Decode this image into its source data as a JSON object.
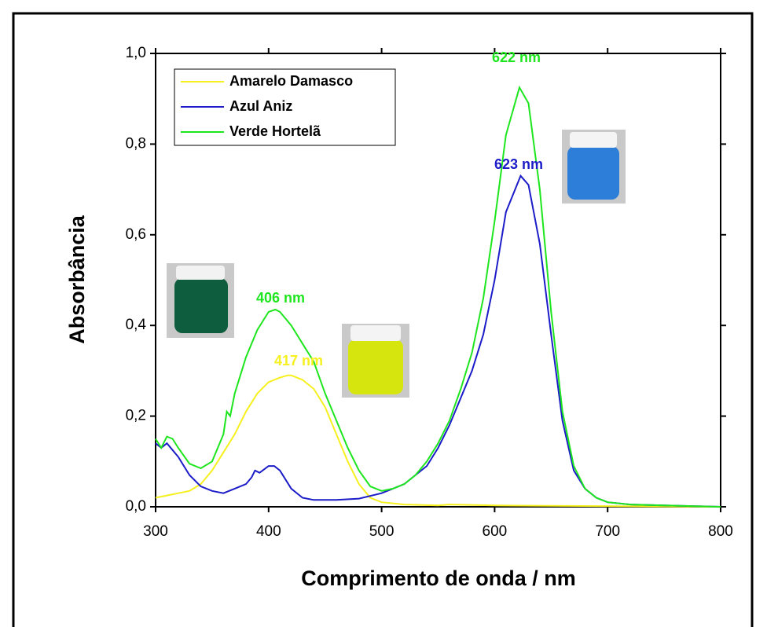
{
  "chart_data": {
    "type": "line",
    "xlabel": "Comprimento de onda / nm",
    "ylabel": "Absorbância",
    "xlim": [
      300,
      800
    ],
    "xticks": [
      300,
      400,
      500,
      600,
      700,
      800
    ],
    "ylim": [
      0,
      1.0
    ],
    "yticks": [
      {
        "value": 0,
        "label": "0,0"
      },
      {
        "value": 0.2,
        "label": "0,2"
      },
      {
        "value": 0.4,
        "label": "0,4"
      },
      {
        "value": 0.6,
        "label": "0,6"
      },
      {
        "value": 0.8,
        "label": "0,8"
      },
      {
        "value": 1.0,
        "label": "1,0"
      }
    ],
    "legend": "upper left",
    "series": [
      {
        "name": "Amarelo Damasco",
        "color": "#f5f01e",
        "x": [
          300,
          310,
          320,
          330,
          340,
          350,
          360,
          370,
          380,
          390,
          400,
          410,
          417,
          420,
          430,
          440,
          450,
          460,
          470,
          480,
          490,
          500,
          520,
          550,
          560,
          600,
          800
        ],
        "values": [
          0.02,
          0.025,
          0.03,
          0.035,
          0.05,
          0.08,
          0.12,
          0.16,
          0.21,
          0.25,
          0.275,
          0.285,
          0.29,
          0.29,
          0.28,
          0.26,
          0.22,
          0.16,
          0.1,
          0.05,
          0.02,
          0.01,
          0.005,
          0.003,
          0.005,
          0.003,
          0.0
        ]
      },
      {
        "name": "Azul Aniz",
        "color": "#1c1cc8",
        "x": [
          300,
          305,
          310,
          320,
          330,
          340,
          350,
          360,
          370,
          380,
          385,
          388,
          392,
          400,
          405,
          410,
          420,
          430,
          440,
          460,
          480,
          500,
          510,
          520,
          530,
          540,
          550,
          560,
          570,
          580,
          590,
          600,
          610,
          623,
          630,
          640,
          650,
          660,
          670,
          680,
          690,
          700,
          720,
          800
        ],
        "values": [
          0.14,
          0.13,
          0.14,
          0.11,
          0.07,
          0.045,
          0.035,
          0.03,
          0.04,
          0.05,
          0.065,
          0.08,
          0.075,
          0.09,
          0.09,
          0.08,
          0.04,
          0.02,
          0.015,
          0.015,
          0.018,
          0.03,
          0.04,
          0.05,
          0.07,
          0.09,
          0.13,
          0.18,
          0.24,
          0.3,
          0.38,
          0.5,
          0.65,
          0.73,
          0.71,
          0.58,
          0.38,
          0.19,
          0.08,
          0.04,
          0.02,
          0.01,
          0.005,
          0.0
        ]
      },
      {
        "name": "Verde Hortelã",
        "color": "#1ee61e",
        "x": [
          300,
          305,
          310,
          315,
          320,
          330,
          340,
          350,
          360,
          363,
          366,
          370,
          380,
          390,
          400,
          406,
          410,
          420,
          430,
          440,
          450,
          460,
          470,
          480,
          490,
          500,
          510,
          520,
          530,
          540,
          550,
          560,
          570,
          580,
          590,
          600,
          610,
          622,
          630,
          640,
          650,
          660,
          670,
          680,
          690,
          700,
          720,
          750,
          800
        ],
        "values": [
          0.15,
          0.13,
          0.155,
          0.15,
          0.13,
          0.095,
          0.085,
          0.1,
          0.16,
          0.21,
          0.2,
          0.25,
          0.33,
          0.39,
          0.43,
          0.435,
          0.43,
          0.4,
          0.36,
          0.32,
          0.25,
          0.19,
          0.13,
          0.08,
          0.045,
          0.035,
          0.04,
          0.05,
          0.07,
          0.1,
          0.14,
          0.19,
          0.26,
          0.34,
          0.46,
          0.63,
          0.82,
          0.925,
          0.89,
          0.7,
          0.43,
          0.21,
          0.09,
          0.04,
          0.02,
          0.01,
          0.005,
          0.003,
          0.0
        ]
      }
    ],
    "annotations": [
      {
        "text": "622 nm",
        "color": "#1ee61e"
      },
      {
        "text": "623 nm",
        "color": "#1c1cc8"
      },
      {
        "text": "406 nm",
        "color": "#1ee61e"
      },
      {
        "text": "417 nm",
        "color": "#f5f01e"
      }
    ]
  }
}
